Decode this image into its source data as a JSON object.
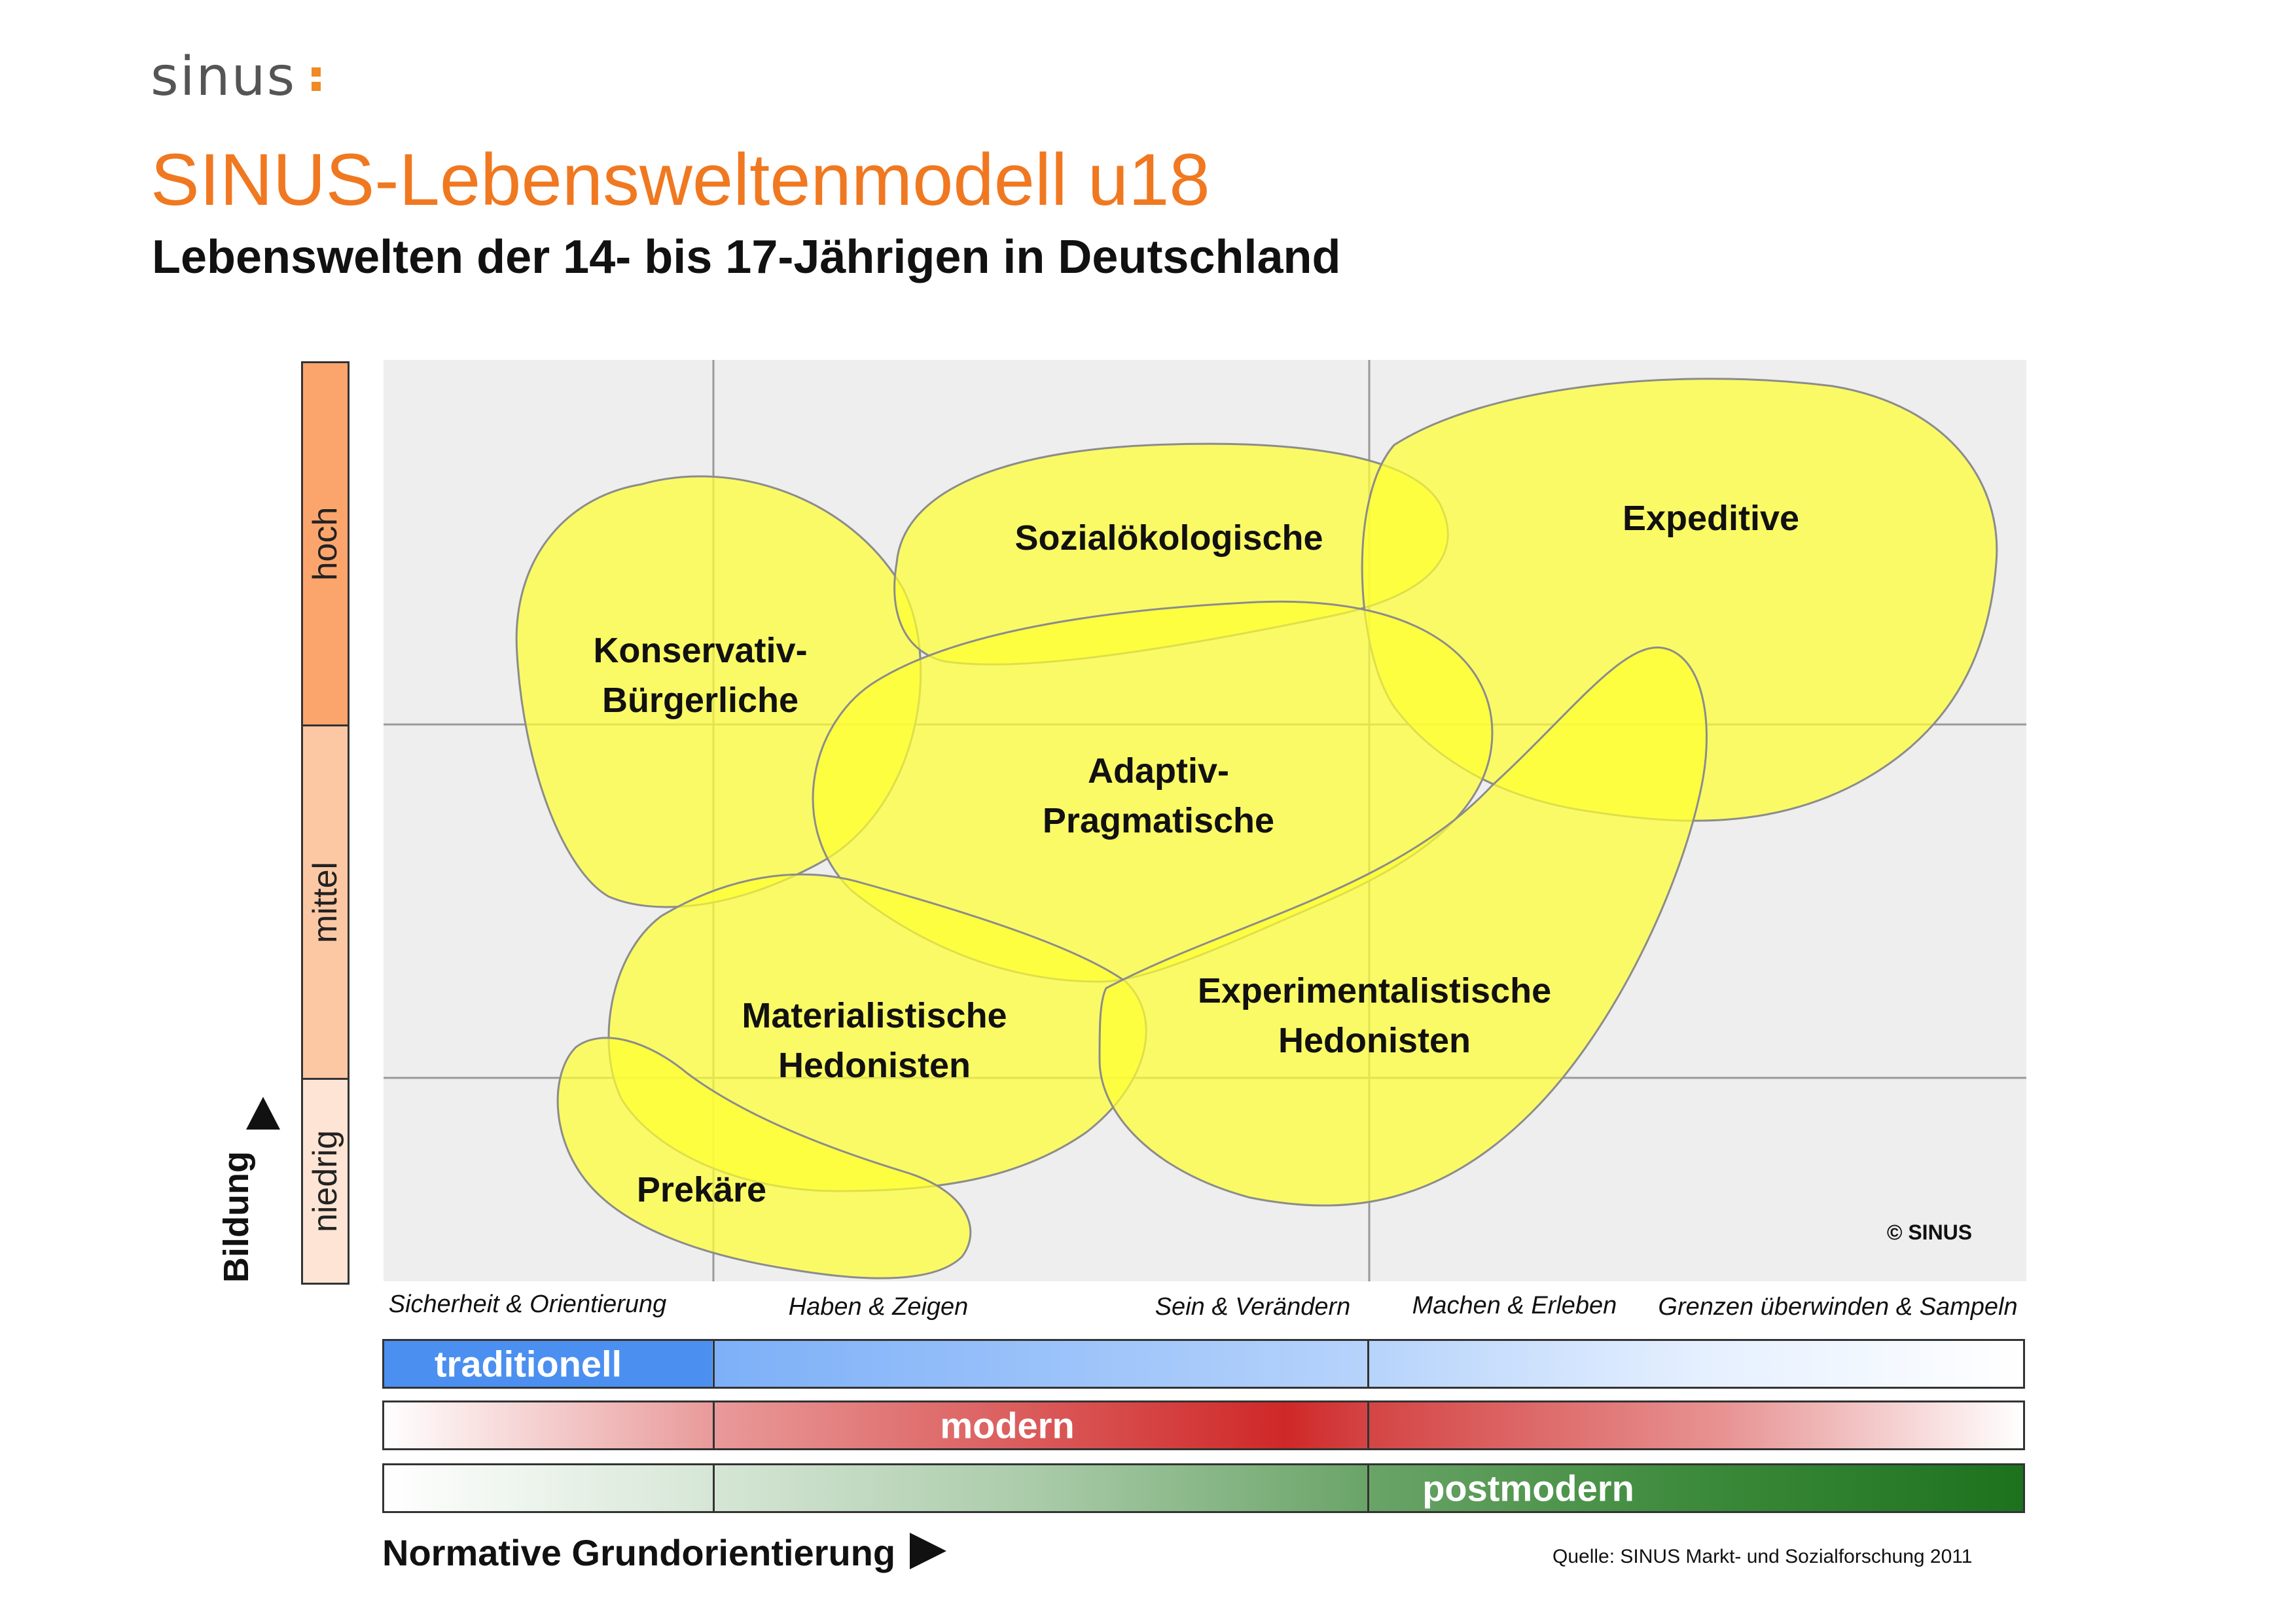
{
  "brand": {
    "logo": "sinus"
  },
  "header": {
    "title": "SINUS-Lebensweltenmodell u18",
    "subtitle": "Lebenswelten der 14- bis 17-Jährigen in Deutschland"
  },
  "y_axis": {
    "label": "Bildung",
    "levels": [
      "hoch",
      "mittel",
      "niedrig"
    ],
    "colors": {
      "hoch": "#fba56c",
      "mittel": "#fcc8a4",
      "niedrig": "#fde4d4"
    }
  },
  "x_axis": {
    "label": "Normative Grundorientierung",
    "orientations": [
      "Sicherheit & Orientierung",
      "Haben & Zeigen",
      "Sein & Verändern",
      "Machen & Erleben",
      "Grenzen überwinden & Sampeln"
    ]
  },
  "milieus": [
    {
      "id": "konservativ",
      "lines": [
        "Konservativ-",
        "Bürgerliche"
      ]
    },
    {
      "id": "sozialoekologische",
      "lines": [
        "Sozialökologische"
      ]
    },
    {
      "id": "expeditive",
      "lines": [
        "Expeditive"
      ]
    },
    {
      "id": "adaptiv",
      "lines": [
        "Adaptiv-",
        "Pragmatische"
      ]
    },
    {
      "id": "materialistische",
      "lines": [
        "Materialistische",
        "Hedonisten"
      ]
    },
    {
      "id": "experimentalistische",
      "lines": [
        "Experimentalistische",
        "Hedonisten"
      ]
    },
    {
      "id": "prekaere",
      "lines": [
        "Prekäre"
      ]
    }
  ],
  "copyright": "© SINUS",
  "bars": {
    "traditionell": "traditionell",
    "modern": "modern",
    "postmodern": "postmodern"
  },
  "source": "Quelle:  SINUS  Markt- und Sozialforschung 2011",
  "colors": {
    "title": "#f07820",
    "milieu_fill": "#ffff66",
    "plot_bg": "#eeeeee"
  }
}
